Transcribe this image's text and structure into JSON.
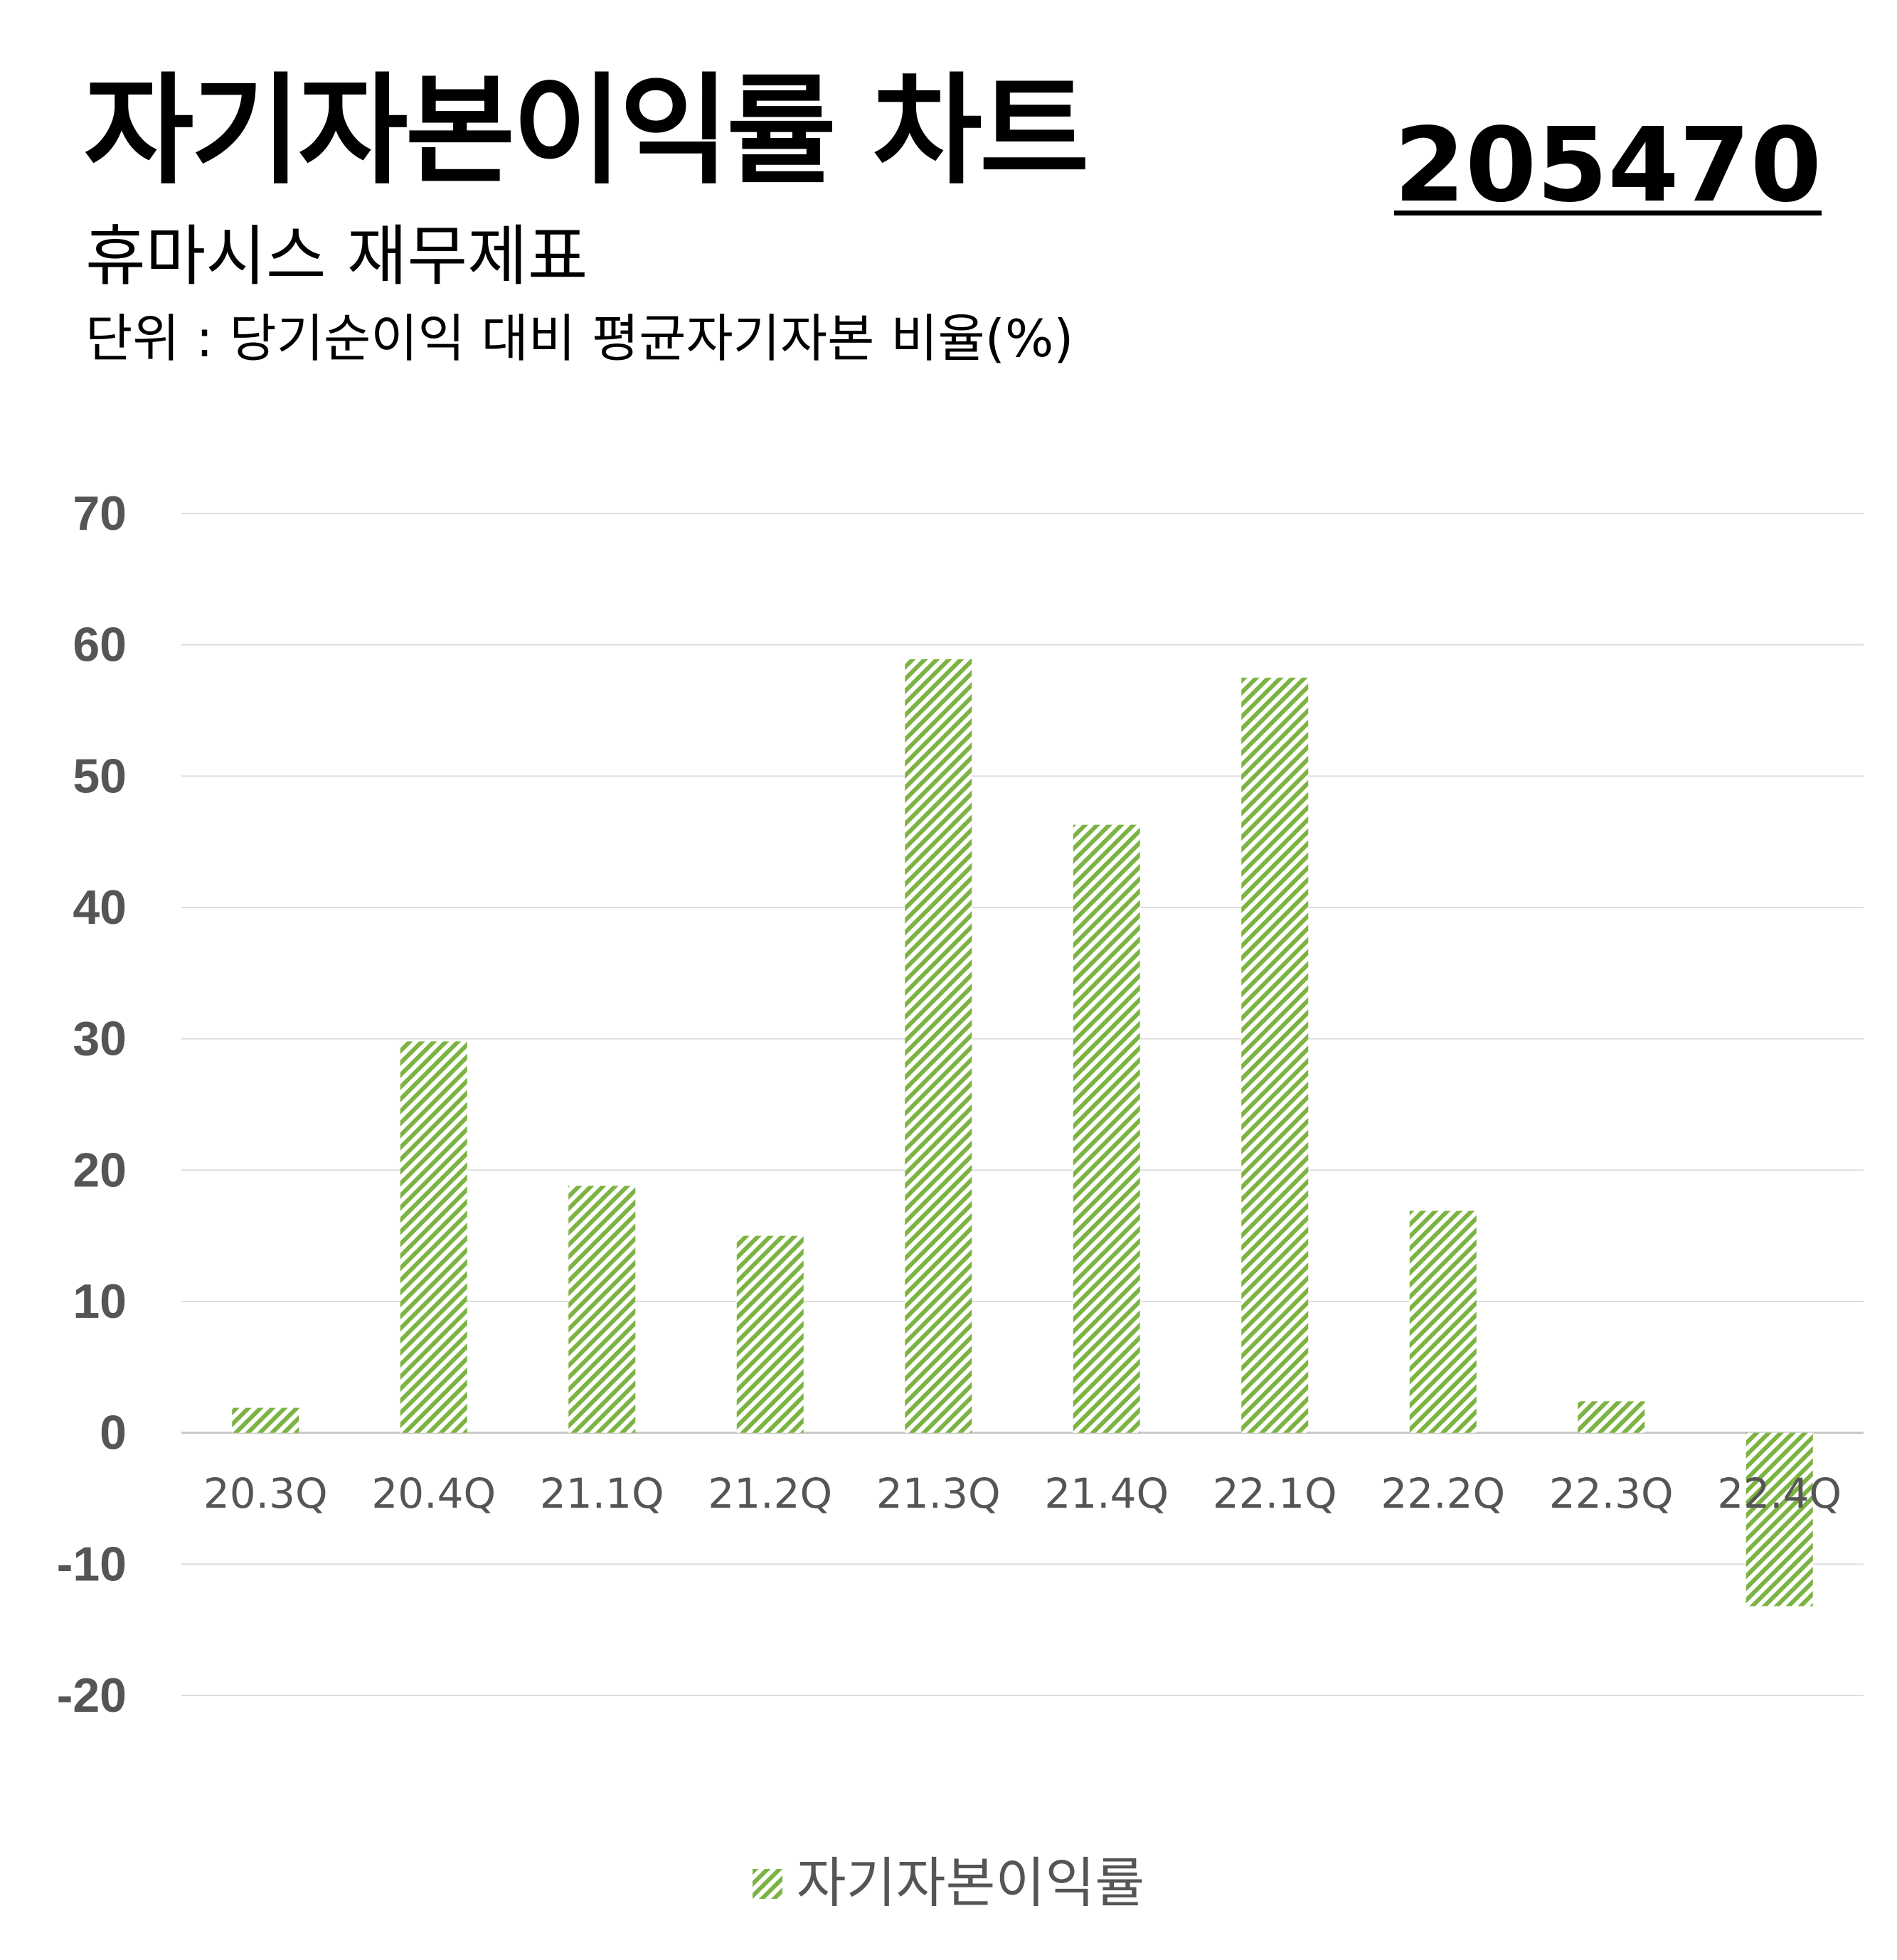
{
  "header": {
    "title": "자기자본이익률 차트",
    "subtitle": "휴마시스 재무제표",
    "unit": "단위 : 당기순이익 대비 평균자기자본 비율(%)",
    "code": "205470"
  },
  "chart_data": {
    "type": "bar",
    "categories": [
      "20.3Q",
      "20.4Q",
      "21.1Q",
      "21.2Q",
      "21.3Q",
      "21.4Q",
      "22.1Q",
      "22.2Q",
      "22.3Q",
      "22.4Q"
    ],
    "series": [
      {
        "name": "자기자본이익률",
        "values": [
          1.9,
          29.8,
          18.8,
          15.0,
          58.9,
          46.3,
          57.5,
          16.9,
          2.4,
          -13.2
        ]
      }
    ],
    "ylim": [
      -20,
      70
    ],
    "yticks": [
      "70",
      "60",
      "50",
      "40",
      "30",
      "20",
      "10",
      "0",
      "-10",
      "-20"
    ],
    "grid": true,
    "legend_position": "bottom-center",
    "bar_color": "#7cb342",
    "bar_pattern": "diagonal-hatch"
  }
}
